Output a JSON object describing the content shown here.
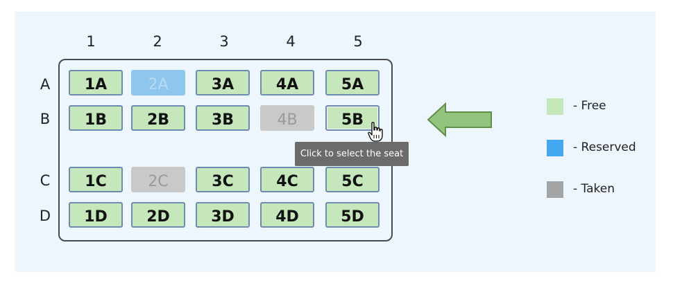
{
  "columns": [
    "1",
    "2",
    "3",
    "4",
    "5"
  ],
  "rows": [
    "A",
    "B",
    "C",
    "D"
  ],
  "seats": [
    {
      "label": "1A",
      "status": "free"
    },
    {
      "label": "2A",
      "status": "reserved"
    },
    {
      "label": "3A",
      "status": "free"
    },
    {
      "label": "4A",
      "status": "free"
    },
    {
      "label": "5A",
      "status": "free"
    },
    {
      "label": "1B",
      "status": "free"
    },
    {
      "label": "2B",
      "status": "free"
    },
    {
      "label": "3B",
      "status": "free"
    },
    {
      "label": "4B",
      "status": "taken"
    },
    {
      "label": "5B",
      "status": "free"
    },
    {
      "label": "1C",
      "status": "free"
    },
    {
      "label": "2C",
      "status": "taken"
    },
    {
      "label": "3C",
      "status": "free"
    },
    {
      "label": "4C",
      "status": "free"
    },
    {
      "label": "5C",
      "status": "free"
    },
    {
      "label": "1D",
      "status": "free"
    },
    {
      "label": "2D",
      "status": "free"
    },
    {
      "label": "3D",
      "status": "free"
    },
    {
      "label": "4D",
      "status": "free"
    },
    {
      "label": "5D",
      "status": "free"
    }
  ],
  "tooltip": "Click to select the seat",
  "legend": [
    {
      "label": "- Free",
      "color": "#c6e7bb"
    },
    {
      "label": "- Reserved",
      "color": "#43a7ef"
    },
    {
      "label": "- Taken",
      "color": "#a3a3a3"
    }
  ],
  "colors": {
    "free": "#c6e7bb",
    "reserved": "#8ec6ee",
    "taken": "#c9c9c9",
    "arrow_fill": "#93c47d",
    "arrow_stroke": "#5f8f46",
    "panel_bg": "#eef6fd"
  },
  "icons": {
    "cursor": "hand-pointer-icon",
    "arrow": "left-arrow-icon"
  }
}
